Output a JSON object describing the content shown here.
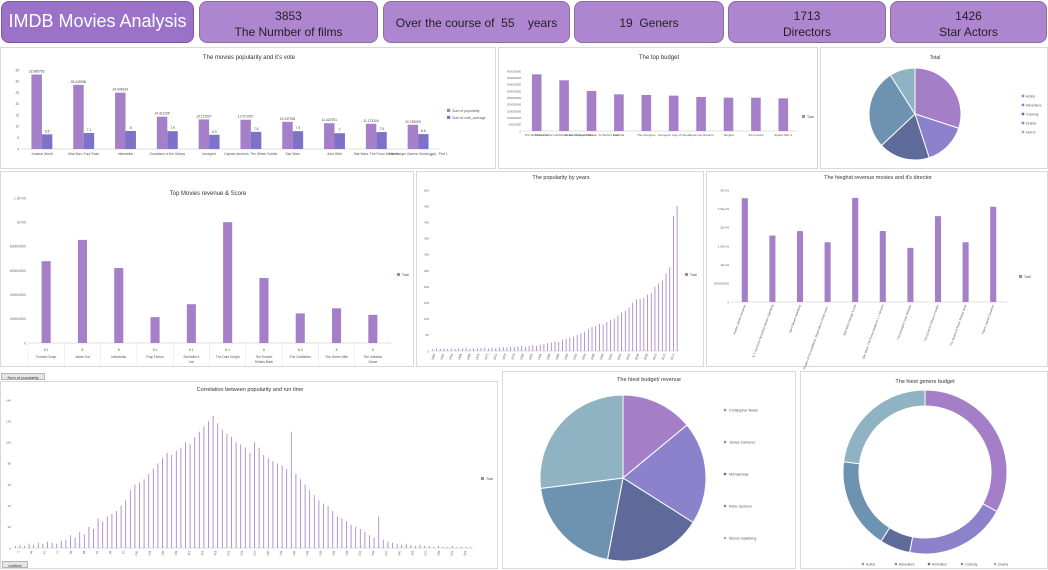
{
  "header": {
    "title": "IMDB Movies Analysis",
    "films_count": "3853",
    "films_label": "The Number of films",
    "course_text": "Over the course of  55    years",
    "geners_text": "19  Geners",
    "directors_count": "1713",
    "directors_label": "Directors",
    "actors_count": "1426",
    "actors_label": "Star Actors"
  },
  "filter_chips": {
    "popularity_chip": "Sum of popularity",
    "runtime_chip": "runtime"
  },
  "colors": {
    "purple": "#a57fc8",
    "blue_purple": "#7c72c8",
    "pie_palette": [
      "#a47fc8",
      "#8c82cc",
      "#5e6b9a",
      "#6d93b0",
      "#8fb3c2"
    ]
  },
  "chart_data": [
    {
      "id": "popularity-vote",
      "type": "bar",
      "title": "The movies popularity and it's vote",
      "categories": [
        "Jurassic World",
        "Mad Max: Fury Road",
        "Interstellar",
        "Guardians of the Galaxy",
        "Insurgent",
        "Captain America: The Winter Soldier",
        "Star Wars",
        "John Wick",
        "Star Wars: The Force Awakens",
        "The Hunger Games: Mockingjay - Part 1"
      ],
      "series": [
        {
          "name": "Sum of popularity",
          "values": [
            32.985763,
            28.419936,
            24.949134,
            14.311205,
            13.112507,
            12.971027,
            12.037933,
            11.422751,
            11.173104,
            10.739009
          ],
          "labels": [
            "32.985763",
            "28.419936",
            "24.949134",
            "14.311205",
            "13.112507",
            "12.971027",
            "12.037933",
            "11.422751",
            "11.173104",
            "10.739009"
          ]
        },
        {
          "name": "Sum of vote_average",
          "values": [
            6.5,
            7.1,
            8,
            7.9,
            6.3,
            7.6,
            7.9,
            7,
            7.5,
            6.6
          ],
          "labels": [
            "6.5",
            "7.1",
            "8",
            "7.9",
            "6.3",
            "7.6",
            "7.9",
            "7",
            "7.5",
            "6.6"
          ]
        }
      ],
      "ylim": [
        0,
        35
      ],
      "yticks": [
        "0",
        "5",
        "10",
        "15",
        "20",
        "25",
        "30",
        "35"
      ]
    },
    {
      "id": "top-budget",
      "type": "bar",
      "title": "The top budget",
      "categories": [
        "The Warrior's Way",
        "Pirates of the Caribbean: On Stranger Tides",
        "Pirates of the Caribbean: At World's End",
        "Godzilla",
        "The Avengers",
        "Avengers: Age of Ultron",
        "Superman Returns",
        "Tangled",
        "John Carter",
        "Spider-Man 3"
      ],
      "series": [
        {
          "name": "Total",
          "values": [
            425000000,
            380000000,
            300000000,
            275000000,
            270000000,
            265000000,
            255000000,
            250000000,
            250000000,
            245000000
          ]
        }
      ],
      "ylim": [
        0,
        450000000
      ],
      "yticks": [
        "0",
        "50000000",
        "100000000",
        "150000000",
        "200000000",
        "250000000",
        "300000000",
        "350000000",
        "400000000",
        "450000000"
      ]
    },
    {
      "id": "total-pie",
      "type": "pie",
      "title": "Total",
      "categories": [
        "Action",
        "Adventure",
        "Comedy",
        "Drama",
        "Horror"
      ],
      "values": [
        30,
        15,
        18,
        28,
        9
      ],
      "legend": "right"
    },
    {
      "id": "revenue-score",
      "type": "bar",
      "title": "Top Movies revenue & Score",
      "categories": [
        "Forrest Gump",
        "Inside Out",
        "Interstellar",
        "Pulp Fiction",
        "Schindler's List",
        "The Dark Knight",
        "The Empire Strikes Back",
        "The Godfather",
        "The Green Mile",
        "The Imitation Game"
      ],
      "scores": [
        "8.1",
        "8",
        "8",
        "8.1",
        "8.1",
        "8.1",
        "8",
        "8.3",
        "8",
        "8"
      ],
      "series": [
        {
          "name": "Total",
          "values": [
            677000000,
            853000000,
            621000000,
            214000000,
            321000000,
            1000000000,
            538000000,
            245000000,
            287000000,
            233000000
          ]
        }
      ],
      "ylim": [
        0,
        1200000000
      ],
      "yticks": [
        "0",
        "200000000",
        "400000000",
        "600000000",
        "800000000",
        "1E+09",
        "1.2E+09"
      ]
    },
    {
      "id": "popularity-years",
      "type": "bar",
      "title": "The popularity by years",
      "series": [
        {
          "name": "Total",
          "values": [
            6,
            8,
            7,
            9,
            7,
            8,
            6,
            9,
            8,
            10,
            7,
            8,
            9,
            9,
            10,
            8,
            11,
            9,
            10,
            12,
            11,
            13,
            12,
            14,
            16,
            13,
            15,
            18,
            16,
            20,
            22,
            24,
            26,
            30,
            28,
            35,
            38,
            42,
            45,
            50,
            55,
            60,
            68,
            75,
            78,
            85,
            82,
            90,
            95,
            100,
            110,
            120,
            125,
            135,
            150,
            160,
            162,
            165,
            175,
            180,
            200,
            210,
            220,
            240,
            260,
            420,
            450
          ]
        }
      ],
      "x_labels": [
        "1960",
        "1962",
        "1964",
        "1966",
        "1968",
        "1970",
        "1972",
        "1974",
        "1976",
        "1978",
        "1980",
        "1982",
        "1984",
        "1986",
        "1988",
        "1990",
        "1992",
        "1994",
        "1996",
        "1998",
        "2000",
        "2002",
        "2004",
        "2006",
        "2008",
        "2010",
        "2012",
        "2014"
      ],
      "ylim": [
        0,
        500
      ],
      "yticks": [
        "0",
        "50",
        "100",
        "150",
        "200",
        "250",
        "300",
        "350",
        "400",
        "450",
        "500"
      ]
    },
    {
      "id": "revenue-director",
      "type": "bar",
      "title": "The hieghst revenue movies and it's director",
      "categories": [
        "Avatar James Cameron",
        "E.T. the Extra-Terrestrial Steven Spielberg",
        "Jaws Steven Spielberg",
        "Pirates of the Caribbean: Dead Man's Chest Gore...",
        "Star Wars George Lucas",
        "Star Wars: The Force Awakens J.J. Abrams",
        "The Avengers Joss Whedon",
        "The Exorcist William Friedkin",
        "The Sound of Music Robert Wise",
        "Titanic James Cameron"
      ],
      "series": [
        {
          "name": "Total",
          "values": [
            2780000000,
            1780000000,
            1900000000,
            1600000000,
            2790000000,
            1900000000,
            1450000000,
            2300000000,
            1600000000,
            2550000000
          ]
        }
      ],
      "ylim": [
        0,
        3000000000
      ],
      "yticks": [
        "0",
        "500000000",
        "1E+09",
        "1.5E+09",
        "2E+09",
        "2.5E+09",
        "3E+09"
      ]
    },
    {
      "id": "popularity-runtime",
      "type": "bar",
      "title": "Correlation between popularity and run time",
      "series": [
        {
          "name": "Total",
          "values": [
            2,
            3,
            2,
            4,
            3,
            5,
            4,
            6,
            5,
            4,
            7,
            8,
            12,
            10,
            15,
            13,
            20,
            18,
            28,
            25,
            30,
            32,
            35,
            40,
            45,
            55,
            60,
            62,
            65,
            70,
            75,
            80,
            85,
            90,
            88,
            92,
            95,
            100,
            98,
            105,
            110,
            115,
            120,
            125,
            118,
            112,
            108,
            105,
            100,
            98,
            95,
            90,
            100,
            95,
            88,
            85,
            82,
            80,
            78,
            75,
            110,
            70,
            65,
            60,
            55,
            50,
            45,
            42,
            40,
            35,
            30,
            28,
            25,
            22,
            20,
            18,
            15,
            12,
            10,
            30,
            8,
            6,
            5,
            4,
            3,
            4,
            3,
            2,
            3,
            2,
            2,
            1,
            2,
            1,
            1,
            2,
            1,
            1,
            1,
            1
          ]
        }
      ],
      "x_labels": [
        "0",
        "44",
        "67",
        "77",
        "84",
        "88",
        "91",
        "94",
        "97",
        "100",
        "103",
        "106",
        "109",
        "112",
        "115",
        "118",
        "121",
        "124",
        "127",
        "130",
        "133",
        "136",
        "139",
        "142",
        "145",
        "148",
        "151",
        "154",
        "157",
        "160",
        "163",
        "170",
        "183",
        "201",
        "216"
      ],
      "ylim": [
        0,
        140
      ],
      "yticks": [
        "0",
        "20",
        "40",
        "60",
        "80",
        "100",
        "120",
        "140"
      ]
    },
    {
      "id": "budget-revenue-pie",
      "type": "pie",
      "title": "The hiest budget/ revenue",
      "categories": [
        "Christopher Nolan",
        "James Cameron",
        "Michael Bay",
        "Peter Jackson",
        "Steven Spielberg"
      ],
      "values": [
        14,
        20,
        19,
        20,
        27
      ],
      "legend": "right"
    },
    {
      "id": "geners-budget-donut",
      "type": "pie",
      "title": "The  hiest geners budget",
      "categories": [
        "Action",
        "Adventure",
        "Animation",
        "Comedy",
        "Drama"
      ],
      "values": [
        33,
        20,
        6,
        18,
        23
      ],
      "legend": "bottom"
    }
  ]
}
